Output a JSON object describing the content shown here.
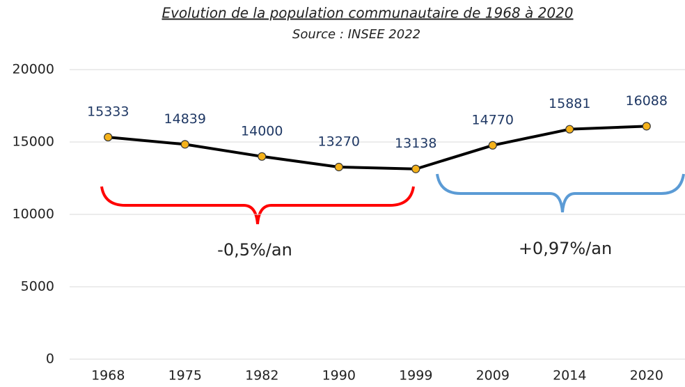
{
  "chart_data": {
    "type": "line",
    "title": "Evolution de la population communautaire de 1968 à 2020",
    "subtitle": "Source : INSEE 2022",
    "categories": [
      "1968",
      "1975",
      "1982",
      "1990",
      "1999",
      "2009",
      "2014",
      "2020"
    ],
    "series": [
      {
        "name": "Population",
        "color": "#000000",
        "marker_color": "#f5b21a",
        "label_color": "#1f3864",
        "values": [
          15333,
          14839,
          14000,
          13270,
          13138,
          14770,
          15881,
          16088
        ]
      }
    ],
    "ylim": [
      0,
      20000
    ],
    "yticks": [
      0,
      5000,
      10000,
      15000,
      20000
    ],
    "grid": true,
    "annotations": [
      {
        "text": "-0,5%/an",
        "color": "#ff0000"
      },
      {
        "text": "+0,97%/an",
        "color": "#5b9bd5"
      }
    ]
  }
}
